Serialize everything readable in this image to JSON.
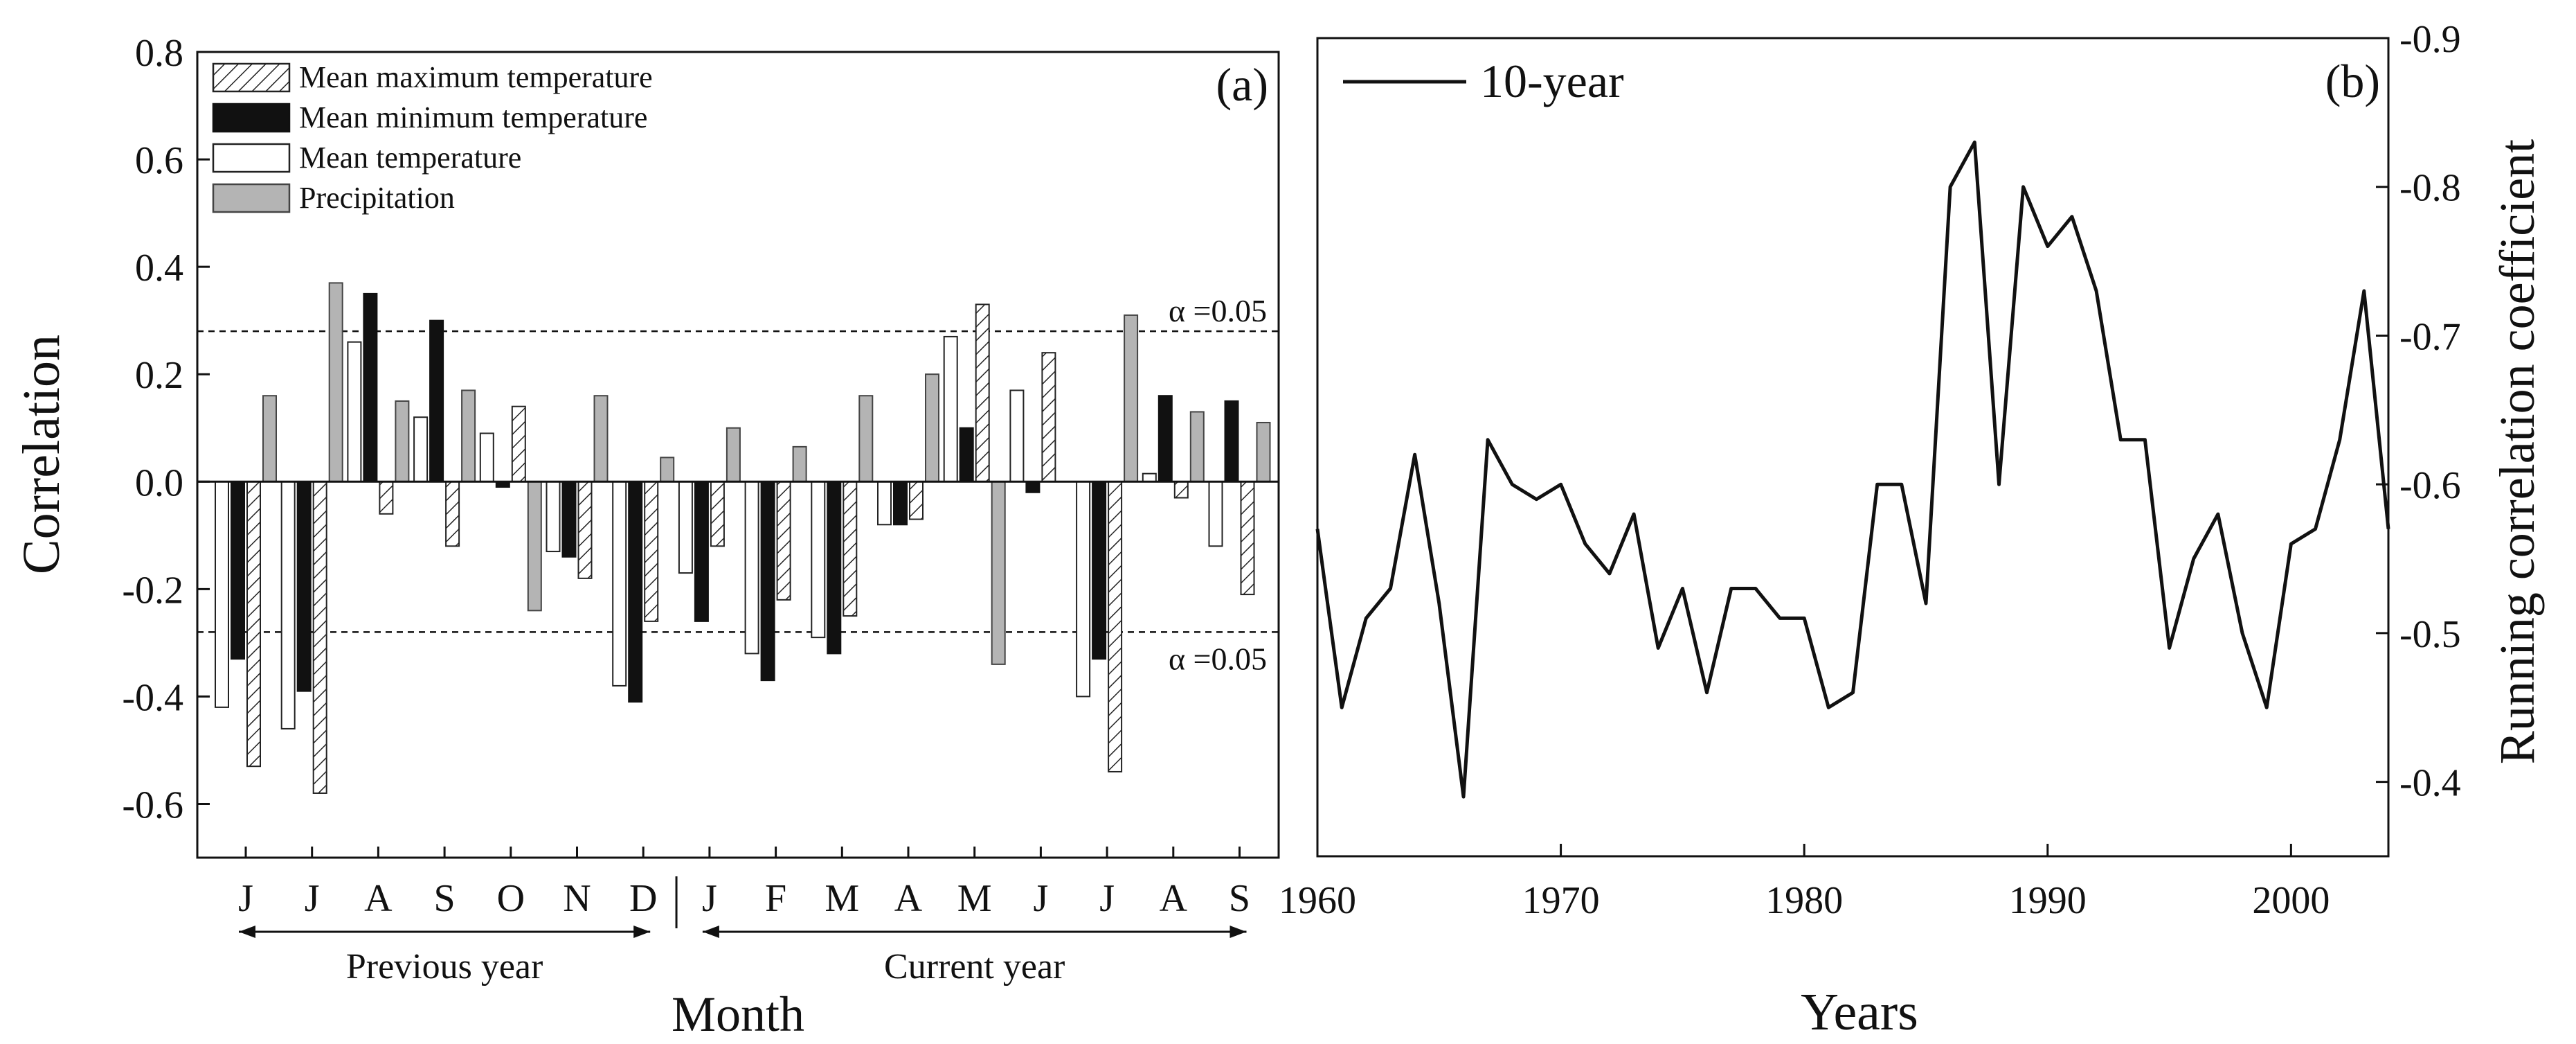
{
  "chart_data": [
    {
      "type": "bar",
      "panel_label": "(a)",
      "ylabel": "Correlation",
      "xlabel": "Month",
      "ylim": [
        -0.7,
        0.8
      ],
      "yticks": [
        -0.6,
        -0.4,
        -0.2,
        0.0,
        0.2,
        0.4,
        0.6,
        0.8
      ],
      "ytick_labels": [
        "-0.6",
        "-0.4",
        "-0.2",
        "0.0",
        "0.2",
        "0.4",
        "0.6",
        "0.8"
      ],
      "categories": [
        "J",
        "J",
        "A",
        "S",
        "O",
        "N",
        "D",
        "J",
        "F",
        "M",
        "A",
        "M",
        "J",
        "J",
        "A",
        "S"
      ],
      "groups": [
        {
          "label": "Previous year",
          "start": 0,
          "end": 6
        },
        {
          "label": "Current year",
          "start": 7,
          "end": 15
        }
      ],
      "series": [
        {
          "name": "Mean temperature",
          "style": "white",
          "values": [
            -0.42,
            -0.46,
            0.26,
            0.12,
            0.09,
            -0.13,
            -0.38,
            -0.17,
            -0.32,
            -0.29,
            -0.08,
            0.27,
            0.17,
            -0.4,
            0.015,
            -0.12
          ]
        },
        {
          "name": "Mean minimum temperature",
          "style": "black",
          "values": [
            -0.33,
            -0.39,
            0.35,
            0.3,
            -0.01,
            -0.14,
            -0.41,
            -0.26,
            -0.37,
            -0.32,
            -0.08,
            0.1,
            -0.02,
            -0.33,
            0.16,
            0.15
          ]
        },
        {
          "name": "Mean maximum temperature",
          "style": "hatched",
          "values": [
            -0.53,
            -0.58,
            -0.06,
            -0.12,
            0.14,
            -0.18,
            -0.26,
            -0.12,
            -0.22,
            -0.25,
            -0.07,
            0.33,
            0.24,
            -0.54,
            -0.03,
            -0.21
          ]
        },
        {
          "name": "Precipitation",
          "style": "gray",
          "values": [
            0.16,
            0.37,
            0.15,
            0.17,
            -0.24,
            0.16,
            0.045,
            0.1,
            0.065,
            0.16,
            0.2,
            -0.34,
            null,
            0.31,
            0.13,
            0.11
          ]
        }
      ],
      "legend": [
        "Mean maximum temperature",
        "Mean minimum temperature",
        "Mean temperature",
        "Precipitation"
      ],
      "reference_lines": [
        {
          "value": 0.28,
          "label": "α =0.05"
        },
        {
          "value": -0.28,
          "label": "α =0.05"
        }
      ]
    },
    {
      "type": "line",
      "panel_label": "(b)",
      "ylabel": "Running correlation coefficient",
      "xlabel": "Years",
      "xlim": [
        1960,
        2004
      ],
      "xticks": [
        1960,
        1970,
        1980,
        1990,
        2000
      ],
      "ylim": [
        -0.35,
        -0.9
      ],
      "y_inverted": true,
      "yticks": [
        -0.4,
        -0.5,
        -0.6,
        -0.7,
        -0.8,
        -0.9
      ],
      "ytick_labels": [
        "-0.4",
        "-0.5",
        "-0.6",
        "-0.7",
        "-0.8",
        "-0.9"
      ],
      "legend": [
        "10-year"
      ],
      "series": [
        {
          "name": "10-year",
          "x": [
            1960,
            1961,
            1962,
            1963,
            1964,
            1965,
            1966,
            1967,
            1968,
            1969,
            1970,
            1971,
            1972,
            1973,
            1974,
            1975,
            1976,
            1977,
            1978,
            1979,
            1980,
            1981,
            1982,
            1983,
            1984,
            1985,
            1986,
            1987,
            1988,
            1989,
            1990,
            1991,
            1992,
            1993,
            1994,
            1995,
            1996,
            1997,
            1998,
            1999,
            2000,
            2001,
            2002,
            2003,
            2004
          ],
          "y": [
            -0.57,
            -0.45,
            -0.51,
            -0.53,
            -0.62,
            -0.52,
            -0.39,
            -0.63,
            -0.6,
            -0.59,
            -0.6,
            -0.56,
            -0.54,
            -0.58,
            -0.49,
            -0.53,
            -0.46,
            -0.53,
            -0.53,
            -0.51,
            -0.51,
            -0.45,
            -0.46,
            -0.6,
            -0.6,
            -0.52,
            -0.8,
            -0.83,
            -0.6,
            -0.8,
            -0.76,
            -0.78,
            -0.73,
            -0.63,
            -0.63,
            -0.49,
            -0.55,
            -0.58,
            -0.5,
            -0.45,
            -0.56,
            -0.57,
            -0.63,
            -0.73,
            -0.57
          ]
        }
      ]
    }
  ]
}
